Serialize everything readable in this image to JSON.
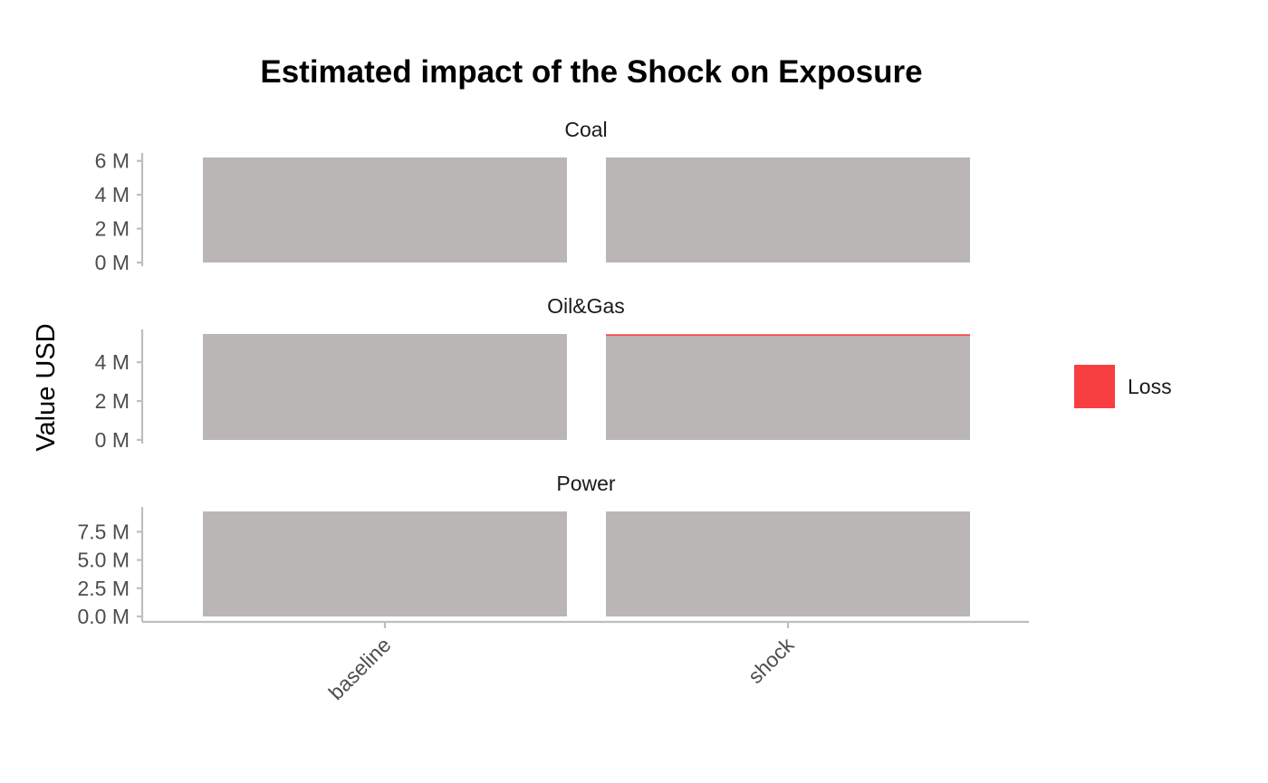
{
  "chart_data": {
    "type": "bar",
    "title": "Estimated impact of the Shock on Exposure",
    "xlabel": "",
    "ylabel": "Value USD",
    "categories": [
      "baseline",
      "shock"
    ],
    "legend": {
      "placement": "right",
      "items": [
        {
          "label": "Loss",
          "color": "#f73e41"
        }
      ]
    },
    "colors": {
      "bar": "#bab6b5",
      "loss": "#f73e41",
      "axis": "#bebebe"
    },
    "panels": [
      {
        "name": "Coal",
        "ylim": [
          0,
          6.2
        ],
        "ticks": [
          {
            "value": 0,
            "label": "0 M"
          },
          {
            "value": 2,
            "label": "2 M"
          },
          {
            "value": 4,
            "label": "4 M"
          },
          {
            "value": 6,
            "label": "6 M"
          }
        ],
        "values": [
          6.2,
          6.2
        ],
        "loss": [
          0,
          0
        ]
      },
      {
        "name": "Oil&Gas",
        "ylim": [
          0,
          5.45
        ],
        "ticks": [
          {
            "value": 0,
            "label": "0 M"
          },
          {
            "value": 2,
            "label": "2 M"
          },
          {
            "value": 4,
            "label": "4 M"
          }
        ],
        "values": [
          5.45,
          5.4
        ],
        "loss": [
          0,
          0.07
        ]
      },
      {
        "name": "Power",
        "ylim": [
          0,
          9.3
        ],
        "ticks": [
          {
            "value": 0,
            "label": "0.0 M"
          },
          {
            "value": 2.5,
            "label": "2.5 M"
          },
          {
            "value": 5.0,
            "label": "5.0 M"
          },
          {
            "value": 7.5,
            "label": "7.5 M"
          }
        ],
        "values": [
          9.3,
          9.3
        ],
        "loss": [
          0,
          0
        ]
      }
    ]
  }
}
